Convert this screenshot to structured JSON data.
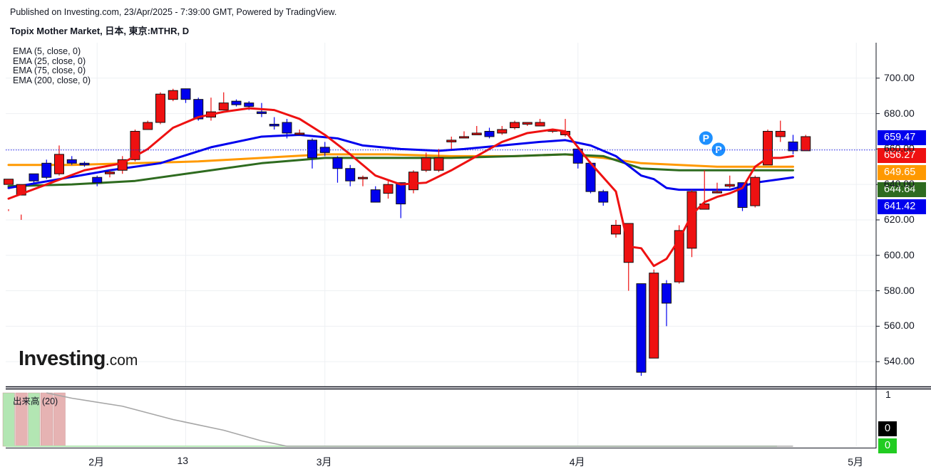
{
  "header": {
    "published": "Published on Investing.com, 23/Apr/2025 - 7:39:00 GMT, Powered by TradingView.",
    "title": "Topix Mother Market, 日本, 東京:MTHR, D"
  },
  "legend": [
    "EMA (5, close, 0)",
    "EMA (25, close, 0)",
    "EMA (75, close, 0)",
    "EMA (200, close, 0)"
  ],
  "logo": {
    "main": "Investing",
    "suffix": ".com"
  },
  "volume_label": "出来高 (20)",
  "price_badges": [
    {
      "label": "659.47",
      "color": "#0000ee"
    },
    {
      "label": "656.27",
      "color": "#ee1111"
    },
    {
      "label": "649.65",
      "color": "#ff9900"
    },
    {
      "label": "644.64",
      "color": "#2e6b1f"
    },
    {
      "label": "641.42",
      "color": "#0000ee"
    }
  ],
  "volume_badges": [
    {
      "label": "0",
      "color": "#000000"
    },
    {
      "label": "0",
      "color": "#22cc22"
    }
  ],
  "colors": {
    "up": "#ee1111",
    "down": "#0000ee",
    "ema5": "#ee1111",
    "ema25": "#0000ee",
    "ema75": "#2e6b1f",
    "ema200": "#ff9900"
  },
  "chart_data": {
    "type": "candlestick",
    "title": "Topix Mother Market, 日本, 東京:MTHR, D",
    "y_ticks": [
      "540.00",
      "560.00",
      "580.00",
      "600.00",
      "620.00",
      "640.00",
      "660.00",
      "680.00",
      "700.00"
    ],
    "ylim": [
      526,
      720
    ],
    "x_ticks": [
      {
        "label": "2月",
        "index": 7
      },
      {
        "label": "13",
        "index": 14
      },
      {
        "label": "3月",
        "index": 25
      },
      {
        "label": "4月",
        "index": 45
      },
      {
        "label": "5月",
        "index": 67
      }
    ],
    "volume_axis": {
      "ticks": [
        "1",
        "0"
      ]
    },
    "markers": [
      {
        "label": "P",
        "index": 55
      },
      {
        "label": "P",
        "index": 56
      }
    ],
    "candles": [
      [
        640,
        643,
        626,
        625
      ],
      [
        634,
        640,
        623,
        620
      ],
      [
        646,
        642,
        646,
        641
      ],
      [
        652,
        644,
        654,
        643
      ],
      [
        646,
        657,
        662,
        645
      ],
      [
        654,
        652,
        656,
        651
      ],
      [
        652,
        651,
        653,
        650
      ],
      [
        644,
        641,
        645,
        639
      ],
      [
        646,
        647,
        648,
        644
      ],
      [
        648,
        654,
        656,
        646
      ],
      [
        654,
        670,
        671,
        653
      ],
      [
        671,
        675,
        676,
        671
      ],
      [
        675,
        691,
        692,
        674
      ],
      [
        688,
        693,
        694,
        687
      ],
      [
        694,
        688,
        694,
        686
      ],
      [
        688,
        677,
        689,
        676
      ],
      [
        678,
        681,
        689,
        676
      ],
      [
        682,
        686,
        692,
        683
      ],
      [
        687,
        685,
        688,
        684
      ],
      [
        686,
        684,
        687,
        682
      ],
      [
        681,
        680,
        686,
        678
      ],
      [
        674,
        673,
        678,
        671
      ],
      [
        675,
        669,
        677,
        666
      ],
      [
        669,
        669,
        671,
        668
      ],
      [
        665,
        655,
        666,
        649
      ],
      [
        661,
        658,
        664,
        656
      ],
      [
        655,
        649,
        656,
        641
      ],
      [
        649,
        642,
        651,
        639
      ],
      [
        644,
        644,
        645,
        639
      ],
      [
        637,
        630,
        639,
        630
      ],
      [
        635,
        640,
        642,
        632
      ],
      [
        641,
        629,
        640,
        621
      ],
      [
        637,
        647,
        648,
        635
      ],
      [
        648,
        655,
        658,
        647
      ],
      [
        648,
        655,
        660,
        647
      ],
      [
        664,
        665,
        667,
        660
      ],
      [
        667,
        667,
        670,
        666
      ],
      [
        668,
        669,
        673,
        668
      ],
      [
        670,
        667,
        672,
        666
      ],
      [
        669,
        671,
        673,
        668
      ],
      [
        672,
        675,
        676,
        671
      ],
      [
        674,
        675,
        675,
        673
      ],
      [
        673,
        675,
        677,
        673
      ],
      [
        670,
        671,
        671,
        669
      ],
      [
        668,
        670,
        677,
        667
      ],
      [
        660,
        652,
        660,
        649
      ],
      [
        652,
        636,
        653,
        635
      ],
      [
        636,
        630,
        637,
        628
      ],
      [
        612,
        617,
        620,
        610
      ],
      [
        596,
        618,
        618,
        580
      ],
      [
        584,
        534,
        584,
        532
      ],
      [
        542,
        590,
        592,
        545
      ],
      [
        584,
        573,
        586,
        560
      ],
      [
        585,
        614,
        617,
        584
      ],
      [
        604,
        636,
        637,
        599
      ],
      [
        626,
        629,
        648,
        626
      ],
      [
        636,
        636,
        641,
        635
      ],
      [
        639,
        640,
        645,
        638
      ],
      [
        641,
        627,
        641,
        625
      ],
      [
        628,
        644,
        645,
        627
      ],
      [
        651,
        670,
        671,
        651
      ],
      [
        667,
        670,
        676,
        664
      ],
      [
        664,
        659,
        668,
        657
      ],
      [
        659,
        667,
        668,
        659
      ]
    ],
    "ema5": [
      [
        0,
        632
      ],
      [
        3,
        640
      ],
      [
        6,
        648
      ],
      [
        9,
        652
      ],
      [
        11,
        660
      ],
      [
        13,
        672
      ],
      [
        15,
        678
      ],
      [
        17,
        681
      ],
      [
        19,
        683
      ],
      [
        21,
        682
      ],
      [
        23,
        677
      ],
      [
        25,
        668
      ],
      [
        27,
        657
      ],
      [
        29,
        645
      ],
      [
        31,
        640
      ],
      [
        33,
        641
      ],
      [
        35,
        648
      ],
      [
        37,
        656
      ],
      [
        39,
        664
      ],
      [
        41,
        669
      ],
      [
        43,
        671
      ],
      [
        44,
        670
      ],
      [
        46,
        652
      ],
      [
        48,
        636
      ],
      [
        49,
        605
      ],
      [
        50,
        604
      ],
      [
        51,
        594
      ],
      [
        52,
        598
      ],
      [
        53,
        609
      ],
      [
        54,
        623
      ],
      [
        55,
        630
      ],
      [
        56,
        633
      ],
      [
        57,
        635
      ],
      [
        58,
        638
      ],
      [
        59,
        650
      ],
      [
        60,
        655
      ],
      [
        61,
        655
      ],
      [
        62,
        656
      ]
    ],
    "ema25": [
      [
        0,
        638
      ],
      [
        4,
        643
      ],
      [
        8,
        648
      ],
      [
        12,
        652
      ],
      [
        16,
        661
      ],
      [
        20,
        667
      ],
      [
        23,
        668
      ],
      [
        26,
        666
      ],
      [
        28,
        662
      ],
      [
        31,
        660
      ],
      [
        34,
        659
      ],
      [
        36,
        660
      ],
      [
        39,
        662
      ],
      [
        42,
        664
      ],
      [
        44,
        665
      ],
      [
        46,
        662
      ],
      [
        48,
        656
      ],
      [
        50,
        645
      ],
      [
        51,
        643
      ],
      [
        52,
        638
      ],
      [
        53,
        637
      ],
      [
        55,
        637
      ],
      [
        57,
        637
      ],
      [
        59,
        641
      ],
      [
        61,
        643
      ],
      [
        62,
        644
      ]
    ],
    "ema75": [
      [
        0,
        639
      ],
      [
        5,
        640
      ],
      [
        10,
        642
      ],
      [
        15,
        647
      ],
      [
        20,
        652
      ],
      [
        25,
        655
      ],
      [
        30,
        655
      ],
      [
        35,
        655
      ],
      [
        40,
        656
      ],
      [
        44,
        657
      ],
      [
        47,
        656
      ],
      [
        50,
        649
      ],
      [
        53,
        648
      ],
      [
        56,
        648
      ],
      [
        59,
        648
      ],
      [
        62,
        648
      ]
    ],
    "ema200": [
      [
        0,
        651
      ],
      [
        5,
        651
      ],
      [
        10,
        652
      ],
      [
        15,
        653
      ],
      [
        20,
        655
      ],
      [
        25,
        657
      ],
      [
        30,
        657
      ],
      [
        35,
        656
      ],
      [
        40,
        656
      ],
      [
        44,
        657
      ],
      [
        47,
        655
      ],
      [
        50,
        652
      ],
      [
        53,
        651
      ],
      [
        56,
        650
      ],
      [
        59,
        650
      ],
      [
        62,
        650
      ]
    ],
    "volume_sma": [
      [
        3,
        1.0
      ],
      [
        5,
        0.9
      ],
      [
        9,
        0.75
      ],
      [
        13,
        0.5
      ],
      [
        17,
        0.3
      ],
      [
        20,
        0.1
      ],
      [
        22,
        0.0
      ],
      [
        62,
        0.0
      ]
    ],
    "volume_bars": [
      {
        "index": 0,
        "value": 1.0,
        "color": "#b3e6b3"
      },
      {
        "index": 1,
        "value": 1.0,
        "color": "#e6b3b3"
      },
      {
        "index": 2,
        "value": 1.0,
        "color": "#b3e6b3"
      },
      {
        "index": 3,
        "value": 1.0,
        "color": "#e6b3b3"
      },
      {
        "index": 4,
        "value": 1.0,
        "color": "#e6b3b3"
      }
    ]
  }
}
